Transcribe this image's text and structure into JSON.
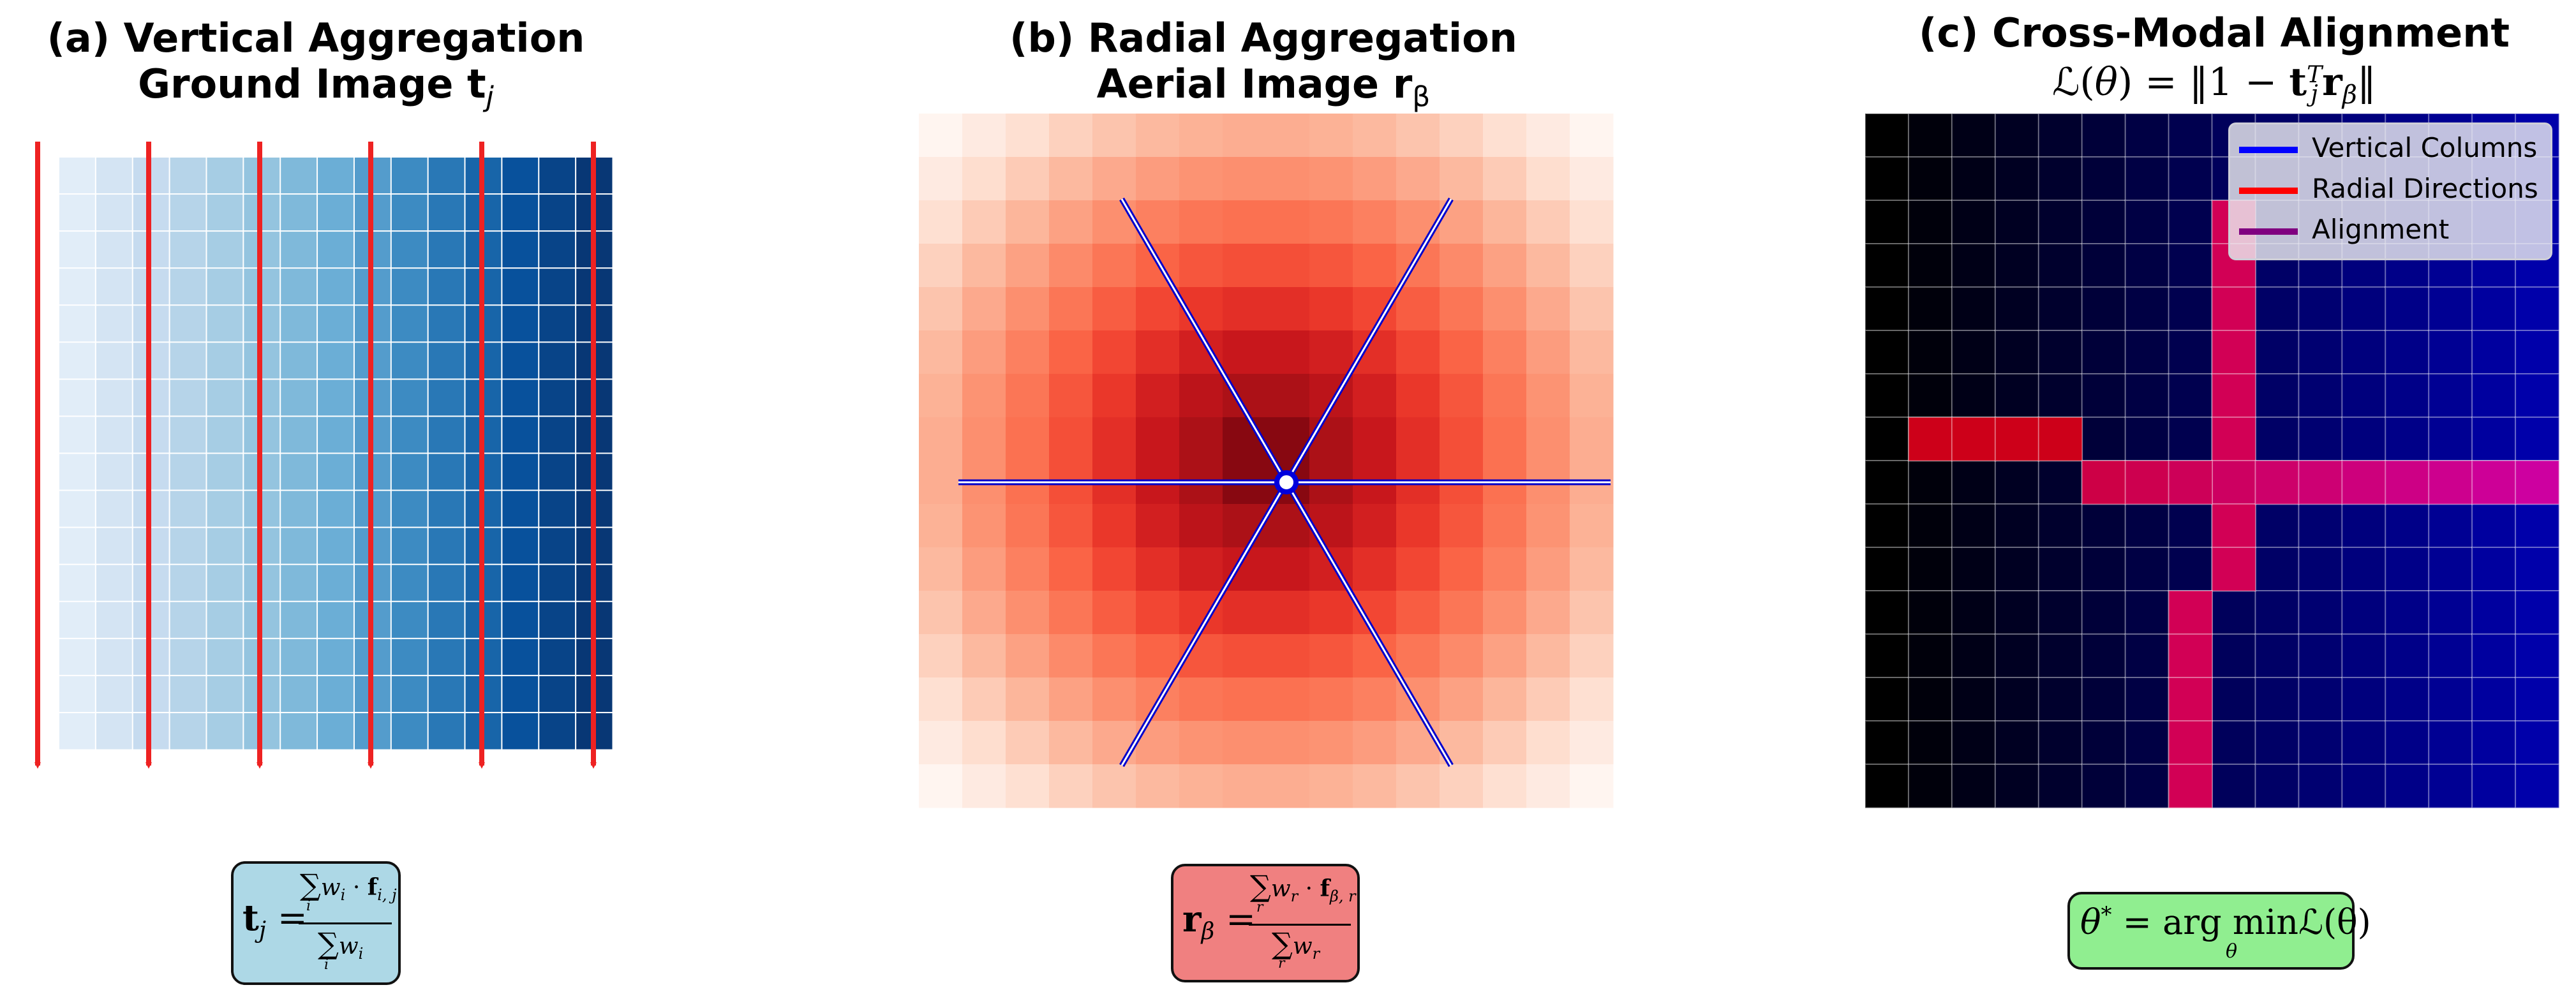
{
  "panel_a": {
    "title_line1": "(a) Vertical Aggregation",
    "title_line2_prefix": "Ground Image ",
    "title_vec": "t",
    "title_sub": "j",
    "formula": {
      "lhs": "t",
      "lhs_sub": "j",
      "eq": "=",
      "num_sum": "∑",
      "num_idx": "i",
      "num_w": "w",
      "num_w_sub": "i",
      "num_dot": "·",
      "num_f": "f",
      "num_f_sub": "i, j",
      "den_sum": "∑",
      "den_idx": "i",
      "den_w": "w",
      "den_w_sub": "i"
    },
    "box_color": "#add8e6"
  },
  "panel_b": {
    "title_line1": "(b) Radial Aggregation",
    "title_line2_prefix": "Aerial Image ",
    "title_vec": "r",
    "title_sub": "β",
    "formula": {
      "lhs": "r",
      "lhs_sub": "β",
      "eq": "=",
      "num_sum": "∑",
      "num_idx": "r",
      "num_w": "w",
      "num_w_sub": "r",
      "num_dot": "·",
      "num_f": "f",
      "num_f_sub": "β, r",
      "den_sum": "∑",
      "den_idx": "r",
      "den_w": "w",
      "den_w_sub": "r"
    },
    "box_color": "#f08080"
  },
  "panel_c": {
    "title_line1": "(c) Cross-Modal Alignment",
    "loss": {
      "L": "ℒ",
      "open": "(",
      "theta": "θ",
      "close_eq": ") = ‖1 − ",
      "t": "t",
      "t_sup": "T",
      "t_sub": "j",
      "r": "r",
      "r_sub": "β",
      "end": "‖"
    },
    "legend": [
      {
        "label": "Vertical Columns",
        "color": "#0000ff"
      },
      {
        "label": "Radial Directions",
        "color": "#ff0000"
      },
      {
        "label": "Alignment",
        "color": "#800080"
      }
    ],
    "formula": {
      "theta": "θ",
      "star": "*",
      "eq": " = arg min",
      "under": "θ",
      "L": "ℒ",
      "arg": "(θ)"
    },
    "box_color": "#90ee90"
  },
  "colors": {
    "arrow": "#ee2222",
    "radial_line_outer": "#0000cc",
    "radial_line_inner": "#ffffff"
  }
}
